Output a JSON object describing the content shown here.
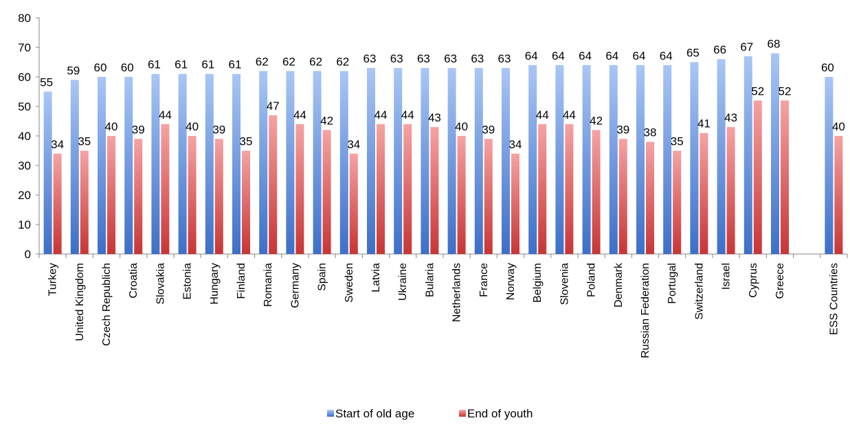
{
  "chart_data": {
    "type": "bar",
    "categories": [
      "Turkey",
      "United Kingdom",
      "Czech Republich",
      "Croatia",
      "Slovakia",
      "Estonia",
      "Hungary",
      "Finland",
      "Romania",
      "Germany",
      "Spain",
      "Sweden",
      "Latvia",
      "Ukraine",
      "Bularia",
      "Netherlands",
      "France",
      "Norway",
      "Belgium",
      "Slovenia",
      "Poland",
      "Denmark",
      "Russian Federation",
      "Portugal",
      "Switzerland",
      "Israel",
      "Cyprus",
      "Greece",
      "ESS Countries"
    ],
    "series": [
      {
        "name": "Start of old age",
        "color": "#5b8ee6",
        "values": [
          55,
          59,
          60,
          60,
          61,
          61,
          61,
          61,
          62,
          62,
          62,
          62,
          63,
          63,
          63,
          63,
          63,
          63,
          64,
          64,
          64,
          64,
          64,
          64,
          65,
          66,
          67,
          68,
          60
        ]
      },
      {
        "name": "End of youth",
        "color": "#e65b5b",
        "values": [
          34,
          35,
          40,
          39,
          44,
          40,
          39,
          35,
          47,
          44,
          42,
          34,
          44,
          44,
          43,
          40,
          39,
          34,
          44,
          44,
          42,
          39,
          38,
          35,
          41,
          43,
          52,
          52,
          40
        ]
      }
    ],
    "title": "",
    "xlabel": "",
    "ylabel": "",
    "ylim": [
      0,
      80
    ],
    "yticks": [
      "0",
      "10",
      "20",
      "30",
      "40",
      "50",
      "60",
      "70",
      "80"
    ],
    "grid": false,
    "legend": "bottom"
  }
}
